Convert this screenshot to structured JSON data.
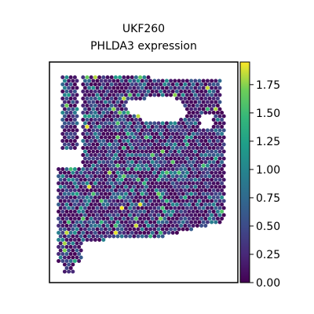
{
  "chart_data": {
    "type": "scatter",
    "title_line1": "UKF260",
    "title_line2": "PHLDA3 expression",
    "xlabel": "",
    "ylabel": "",
    "colormap": "viridis",
    "colorbar": {
      "min": 0.0,
      "max": 1.95,
      "ticks": [
        0.0,
        0.25,
        0.5,
        0.75,
        1.0,
        1.25,
        1.5,
        1.75
      ],
      "tick_labels": [
        "0.00",
        "0.25",
        "0.50",
        "0.75",
        "1.00",
        "1.25",
        "1.50",
        "1.75"
      ]
    },
    "grid": false,
    "axis_ticks_shown": false,
    "background": "#ffffff",
    "spot_colors": [
      "#440154",
      "#3b528b",
      "#21918c",
      "#5ec962",
      "#fde725"
    ],
    "note_values": "per-spot expression values estimated, mostly 0.0–0.75 with sparse hotspots up to ~1.9"
  }
}
